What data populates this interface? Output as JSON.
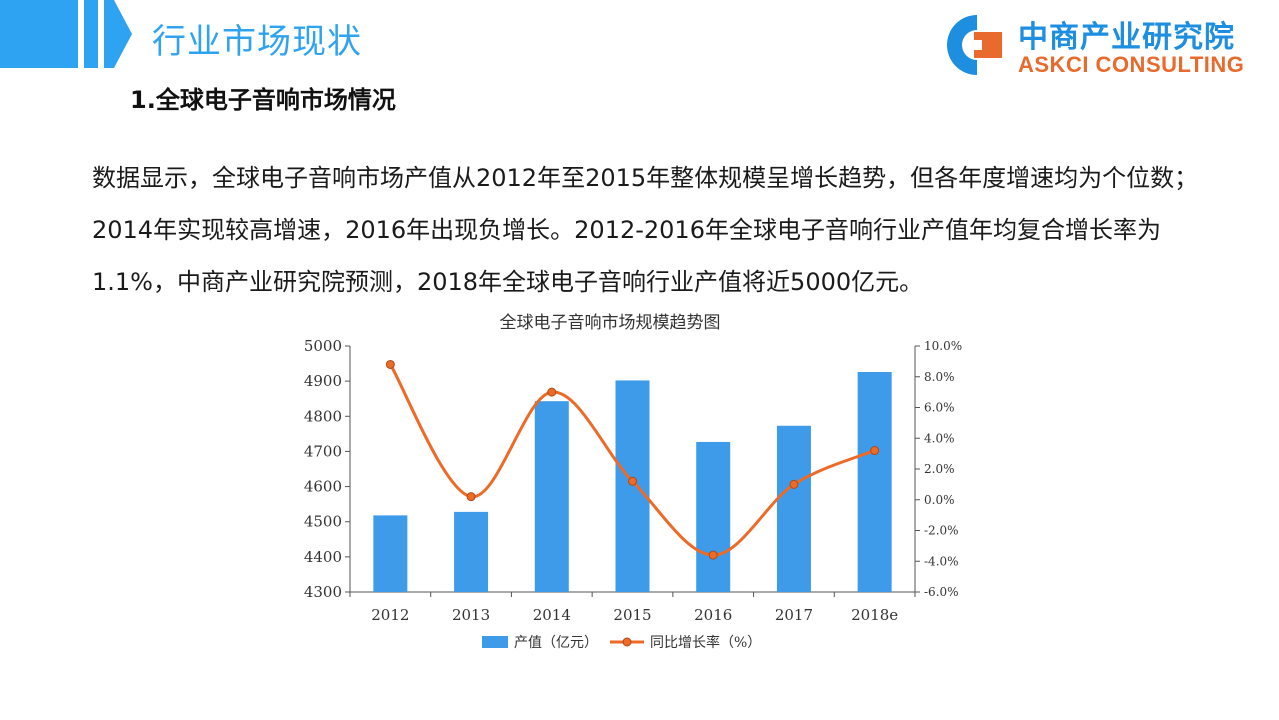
{
  "header": {
    "title": "行业市场现状"
  },
  "logo": {
    "cn": "中商产业研究院",
    "en": "ASKCI CONSULTING"
  },
  "section": {
    "title": "1.全球电子音响市场情况"
  },
  "body": {
    "paragraph": "数据显示，全球电子音响市场产值从2012年至2015年整体规模呈增长趋势，但各年度增速均为个位数；2014年实现较高增速，2016年出现负增长。2012-2016年全球电子音响行业产值年均复合增长率为1.1%，中商产业研究院预测，2018年全球电子音响行业产值将近5000亿元。"
  },
  "colors": {
    "accent": "#2ea3f2",
    "bar": "#3d9be9",
    "line": "#ed6a27",
    "logo_orange": "#e86a2c"
  },
  "chart_data": {
    "type": "bar+line",
    "title": "全球电子音响市场规模趋势图",
    "categories": [
      "2012",
      "2013",
      "2014",
      "2015",
      "2016",
      "2017",
      "2018e"
    ],
    "series": [
      {
        "name": "产值（亿元）",
        "type": "bar",
        "axis": "left",
        "values": [
          4518,
          4528,
          4843,
          4902,
          4727,
          4773,
          4926
        ]
      },
      {
        "name": "同比增长率（%）",
        "type": "line",
        "axis": "right",
        "values": [
          8.8,
          0.2,
          7.0,
          1.2,
          -3.6,
          1.0,
          3.2
        ]
      }
    ],
    "y_left": {
      "min": 4300,
      "max": 5000,
      "ticks": [
        "4300",
        "4400",
        "4500",
        "4600",
        "4700",
        "4800",
        "4900",
        "5000"
      ]
    },
    "y_right": {
      "min": -6,
      "max": 10,
      "ticks": [
        "-6.0%",
        "-4.0%",
        "-2.0%",
        "0.0%",
        "2.0%",
        "4.0%",
        "6.0%",
        "8.0%",
        "10.0%"
      ]
    },
    "legend": {
      "placement": "bottom"
    },
    "grid": false
  }
}
